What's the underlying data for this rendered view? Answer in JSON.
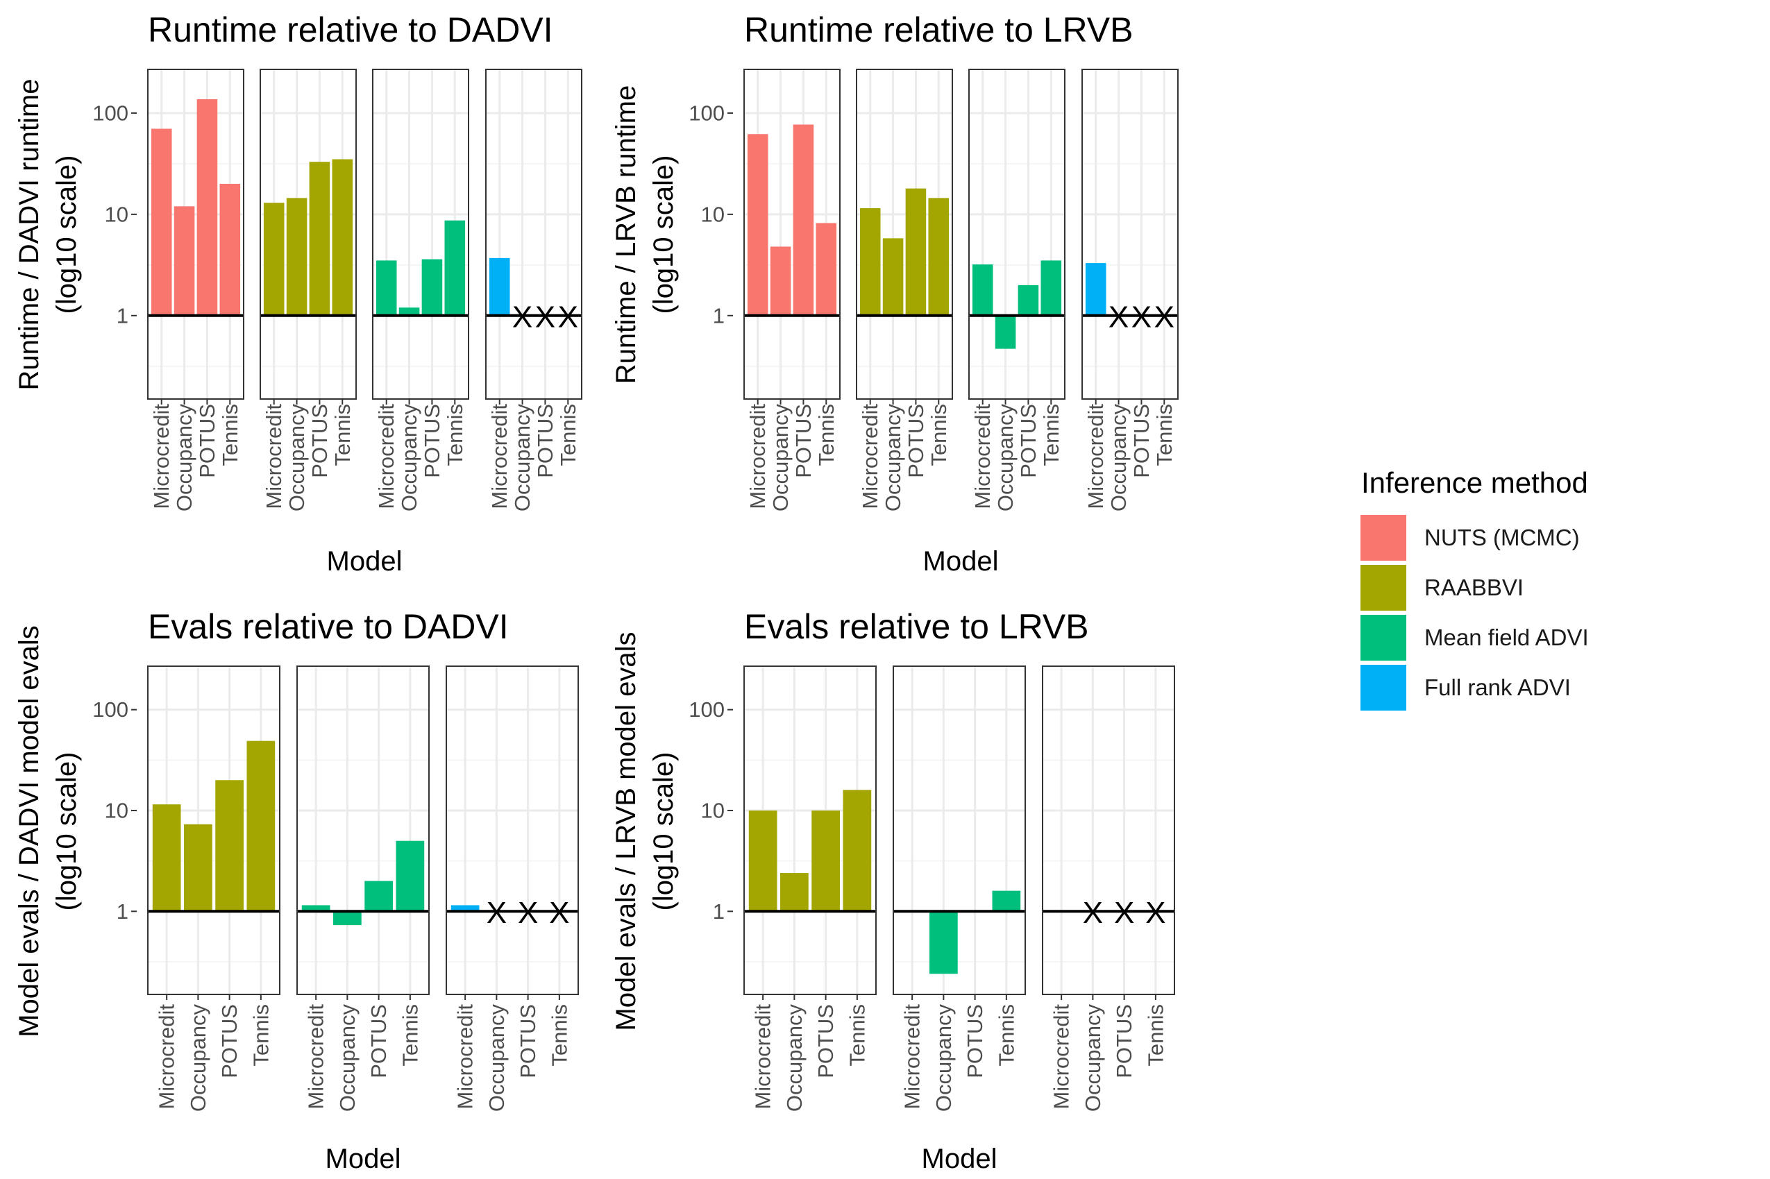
{
  "colors": {
    "NUTS (MCMC)": "#F8766D",
    "RAABBVI": "#A3A500",
    "Mean field ADVI": "#00BF7D",
    "Full rank ADVI": "#00B0F6"
  },
  "legend": {
    "title": "Inference method",
    "items": [
      {
        "label": "NUTS (MCMC)",
        "color": "#F8766D"
      },
      {
        "label": "RAABBVI",
        "color": "#A3A500"
      },
      {
        "label": "Mean field ADVI",
        "color": "#00BF7D"
      },
      {
        "label": "Full rank ADVI",
        "color": "#00B0F6"
      }
    ]
  },
  "chart_data": [
    {
      "type": "bar",
      "title": "Runtime relative to DADVI",
      "xlabel": "Model",
      "ylabel": [
        "Runtime / DADVI runtime",
        "(log10 scale)"
      ],
      "y_scale": "log10",
      "y_ticks": [
        1,
        10,
        100
      ],
      "ylim": [
        0.15,
        270
      ],
      "reference_line": 1,
      "categories": [
        "Microcredit",
        "Occupancy",
        "POTUS",
        "Tennis"
      ],
      "series": [
        {
          "name": "NUTS (MCMC)",
          "values": [
            70,
            12,
            137,
            20
          ]
        },
        {
          "name": "RAABBVI",
          "values": [
            13,
            14.5,
            33,
            35
          ]
        },
        {
          "name": "Mean field ADVI",
          "values": [
            3.5,
            1.2,
            3.6,
            8.7
          ]
        },
        {
          "name": "Full rank ADVI",
          "values": [
            3.7,
            null,
            null,
            null
          ],
          "missing_marker": "X"
        }
      ]
    },
    {
      "type": "bar",
      "title": "Runtime relative to LRVB",
      "xlabel": "Model",
      "ylabel": [
        "Runtime / LRVB runtime",
        "(log10 scale)"
      ],
      "y_scale": "log10",
      "y_ticks": [
        1,
        10,
        100
      ],
      "ylim": [
        0.15,
        270
      ],
      "reference_line": 1,
      "categories": [
        "Microcredit",
        "Occupancy",
        "POTUS",
        "Tennis"
      ],
      "series": [
        {
          "name": "NUTS (MCMC)",
          "values": [
            62,
            4.8,
            77,
            8.2
          ]
        },
        {
          "name": "RAABBVI",
          "values": [
            11.5,
            5.8,
            18,
            14.5
          ]
        },
        {
          "name": "Mean field ADVI",
          "values": [
            3.2,
            0.47,
            2.0,
            3.5
          ]
        },
        {
          "name": "Full rank ADVI",
          "values": [
            3.3,
            null,
            null,
            null
          ],
          "missing_marker": "X"
        }
      ]
    },
    {
      "type": "bar",
      "title": "Evals relative to DADVI",
      "xlabel": "Model",
      "ylabel": [
        "Model evals / DADVI model evals",
        "(log10 scale)"
      ],
      "y_scale": "log10",
      "y_ticks": [
        1,
        10,
        100
      ],
      "ylim": [
        0.15,
        270
      ],
      "reference_line": 1,
      "categories": [
        "Microcredit",
        "Occupancy",
        "POTUS",
        "Tennis"
      ],
      "series": [
        {
          "name": "RAABBVI",
          "values": [
            11.5,
            7.3,
            20,
            49
          ]
        },
        {
          "name": "Mean field ADVI",
          "values": [
            1.15,
            0.73,
            2.0,
            5.0
          ]
        },
        {
          "name": "Full rank ADVI",
          "values": [
            1.15,
            null,
            null,
            null
          ],
          "missing_marker": "X"
        }
      ]
    },
    {
      "type": "bar",
      "title": "Evals relative to LRVB",
      "xlabel": "Model",
      "ylabel": [
        "Model evals / LRVB model evals",
        "(log10 scale)"
      ],
      "y_scale": "log10",
      "y_ticks": [
        1,
        10,
        100
      ],
      "ylim": [
        0.15,
        270
      ],
      "reference_line": 1,
      "categories": [
        "Microcredit",
        "Occupancy",
        "POTUS",
        "Tennis"
      ],
      "series": [
        {
          "name": "RAABBVI",
          "values": [
            10,
            2.4,
            10,
            16
          ]
        },
        {
          "name": "Mean field ADVI",
          "values": [
            1.0,
            0.24,
            1.0,
            1.6
          ]
        },
        {
          "name": "Full rank ADVI",
          "values": [
            1.0,
            null,
            null,
            null
          ],
          "missing_marker": "X"
        }
      ]
    }
  ]
}
